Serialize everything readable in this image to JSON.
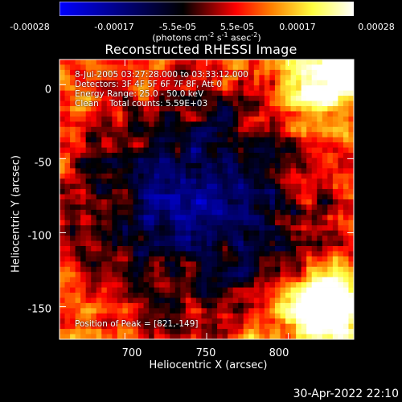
{
  "colorbar": {
    "tick_labels": [
      "-0.00028",
      "-0.00017",
      "-5.5e-05",
      "5.5e-05",
      "0.00017",
      "0.00028"
    ],
    "unit_text": "(photons cm",
    "unit_exp1": "-2",
    "unit_mid1": " s",
    "unit_exp2": "-1",
    "unit_mid2": " asec",
    "unit_exp3": "-2",
    "unit_end": ")",
    "colors": [
      "#0000ff",
      "#000000",
      "#ff0000",
      "#ff8000",
      "#ffff40",
      "#ffffff"
    ]
  },
  "plot": {
    "title": "Reconstructed RHESSI Image",
    "info": {
      "time_range": "8-Jul-2005 03:27:28.000 to 03:33:12.000",
      "detectors": "Detectors: 3F 4F 5F 6F 7F 8F, Att 0",
      "energy": "Energy Range: 25.0 - 50.0 keV",
      "method": "Clean    Total counts: 5.59E+03"
    },
    "peak": "Position of Peak = [821,-149]"
  },
  "chart_data": {
    "type": "heatmap",
    "title": "Reconstructed RHESSI Image",
    "xlabel": "Heliocentric X (arcsec)",
    "ylabel": "Heliocentric Y (arcsec)",
    "xlim": [
      660,
      840
    ],
    "ylim": [
      -172,
      17
    ],
    "x_ticks": [
      700,
      750,
      800
    ],
    "y_ticks": [
      0,
      -50,
      -100,
      -150
    ],
    "x_tick_labels": [
      "700",
      "750",
      "800"
    ],
    "y_tick_labels": [
      "0",
      "-50",
      "-100",
      "-150"
    ],
    "color_range": [
      -0.00028,
      0.00028
    ],
    "peak_position": [
      821,
      -149
    ],
    "grid": false
  },
  "footer": {
    "date": "30-Apr-2022 22:10"
  }
}
